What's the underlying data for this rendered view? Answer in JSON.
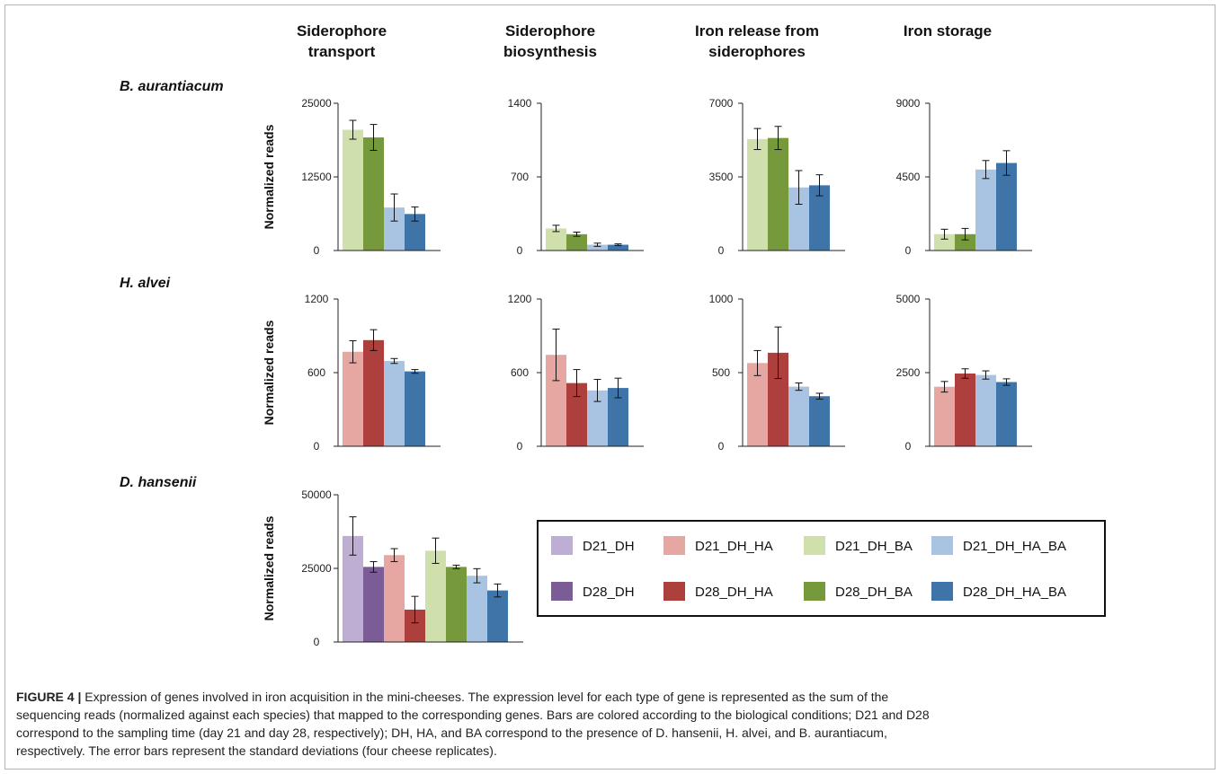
{
  "figure": {
    "column_titles": [
      [
        "Siderophore",
        "transport"
      ],
      [
        "Siderophore",
        "biosynthesis"
      ],
      [
        "Iron release from",
        "siderophores"
      ],
      [
        "Iron storage",
        ""
      ]
    ],
    "row_titles": [
      "B. aurantiacum",
      "H. alvei",
      "D. hansenii"
    ],
    "legend": [
      {
        "label": "D21_DH",
        "color": "#bfaed3"
      },
      {
        "label": "D21_DH_HA",
        "color": "#e6a7a3"
      },
      {
        "label": "D21_DH_BA",
        "color": "#cfe0ad"
      },
      {
        "label": "D21_DH_HA_BA",
        "color": "#a9c4e3"
      },
      {
        "label": "D28_DH",
        "color": "#7b5c96"
      },
      {
        "label": "D28_DH_HA",
        "color": "#ad3f3c"
      },
      {
        "label": "D28_DH_BA",
        "color": "#76993c"
      },
      {
        "label": "D28_DH_HA_BA",
        "color": "#3f74a8"
      }
    ]
  },
  "caption": {
    "label": "FIGURE 4 |",
    "lines": [
      "Expression of genes involved in iron acquisition in the mini-cheeses. The expression level for each type of gene is represented as the sum of the",
      "sequencing reads (normalized against each species) that mapped to the corresponding genes. Bars are colored according to the biological conditions; D21 and D28",
      "correspond to the sampling time (day 21 and day 28, respectively); DH, HA, and BA correspond to the presence of D. hansenii, H. alvei, and B. aurantiacum,",
      "respectively. The error bars represent the standard deviations (four cheese replicates)."
    ]
  },
  "chart_data": [
    {
      "type": "bar",
      "row": 0,
      "col": 0,
      "ylabel": "Normalized reads",
      "ylim": [
        0,
        25000
      ],
      "yticks": [
        "0",
        "12500",
        "25000"
      ],
      "bars": [
        {
          "condition": "D21_DH_BA",
          "value": 20500,
          "error": 1600
        },
        {
          "condition": "D28_DH_BA",
          "value": 19200,
          "error": 2200
        },
        {
          "condition": "D21_DH_HA_BA",
          "value": 7300,
          "error": 2300
        },
        {
          "condition": "D28_DH_HA_BA",
          "value": 6200,
          "error": 1200
        }
      ]
    },
    {
      "type": "bar",
      "row": 0,
      "col": 1,
      "ylabel": "",
      "ylim": [
        0,
        1400
      ],
      "yticks": [
        "0",
        "700",
        "1400"
      ],
      "bars": [
        {
          "condition": "D21_DH_BA",
          "value": 210,
          "error": 30
        },
        {
          "condition": "D28_DH_BA",
          "value": 155,
          "error": 20
        },
        {
          "condition": "D21_DH_HA_BA",
          "value": 55,
          "error": 15
        },
        {
          "condition": "D28_DH_HA_BA",
          "value": 55,
          "error": 8
        }
      ]
    },
    {
      "type": "bar",
      "row": 0,
      "col": 2,
      "ylabel": "",
      "ylim": [
        0,
        7000
      ],
      "yticks": [
        "0",
        "3500",
        "7000"
      ],
      "bars": [
        {
          "condition": "D21_DH_BA",
          "value": 5300,
          "error": 500
        },
        {
          "condition": "D28_DH_BA",
          "value": 5350,
          "error": 550
        },
        {
          "condition": "D21_DH_HA_BA",
          "value": 3000,
          "error": 800
        },
        {
          "condition": "D28_DH_HA_BA",
          "value": 3100,
          "error": 500
        }
      ]
    },
    {
      "type": "bar",
      "row": 0,
      "col": 3,
      "ylabel": "",
      "ylim": [
        0,
        9000
      ],
      "yticks": [
        "0",
        "4500",
        "9000"
      ],
      "bars": [
        {
          "condition": "D21_DH_BA",
          "value": 1000,
          "error": 300
        },
        {
          "condition": "D28_DH_BA",
          "value": 1000,
          "error": 350
        },
        {
          "condition": "D21_DH_HA_BA",
          "value": 4950,
          "error": 550
        },
        {
          "condition": "D28_DH_HA_BA",
          "value": 5350,
          "error": 750
        }
      ]
    },
    {
      "type": "bar",
      "row": 1,
      "col": 0,
      "ylabel": "Normalized reads",
      "ylim": [
        0,
        1200
      ],
      "yticks": [
        "0",
        "600",
        "1200"
      ],
      "bars": [
        {
          "condition": "D21_DH_HA",
          "value": 770,
          "error": 90
        },
        {
          "condition": "D28_DH_HA",
          "value": 865,
          "error": 85
        },
        {
          "condition": "D21_DH_HA_BA",
          "value": 695,
          "error": 20
        },
        {
          "condition": "D28_DH_HA_BA",
          "value": 610,
          "error": 15
        }
      ]
    },
    {
      "type": "bar",
      "row": 1,
      "col": 1,
      "ylabel": "",
      "ylim": [
        0,
        1200
      ],
      "yticks": [
        "0",
        "600",
        "1200"
      ],
      "bars": [
        {
          "condition": "D21_DH_HA",
          "value": 745,
          "error": 210
        },
        {
          "condition": "D28_DH_HA",
          "value": 515,
          "error": 110
        },
        {
          "condition": "D21_DH_HA_BA",
          "value": 455,
          "error": 90
        },
        {
          "condition": "D28_DH_HA_BA",
          "value": 475,
          "error": 80
        }
      ]
    },
    {
      "type": "bar",
      "row": 1,
      "col": 2,
      "ylabel": "",
      "ylim": [
        0,
        1000
      ],
      "yticks": [
        "0",
        "500",
        "1000"
      ],
      "bars": [
        {
          "condition": "D21_DH_HA",
          "value": 565,
          "error": 85
        },
        {
          "condition": "D28_DH_HA",
          "value": 635,
          "error": 175
        },
        {
          "condition": "D21_DH_HA_BA",
          "value": 405,
          "error": 25
        },
        {
          "condition": "D28_DH_HA_BA",
          "value": 340,
          "error": 20
        }
      ]
    },
    {
      "type": "bar",
      "row": 1,
      "col": 3,
      "ylabel": "",
      "ylim": [
        0,
        5000
      ],
      "yticks": [
        "0",
        "2500",
        "5000"
      ],
      "bars": [
        {
          "condition": "D21_DH_HA",
          "value": 2020,
          "error": 180
        },
        {
          "condition": "D28_DH_HA",
          "value": 2470,
          "error": 160
        },
        {
          "condition": "D21_DH_HA_BA",
          "value": 2420,
          "error": 140
        },
        {
          "condition": "D28_DH_HA_BA",
          "value": 2180,
          "error": 110
        }
      ]
    },
    {
      "type": "bar",
      "row": 2,
      "col": 0,
      "ylabel": "Normalized reads",
      "ylim": [
        0,
        50000
      ],
      "yticks": [
        "0",
        "25000",
        "50000"
      ],
      "bars": [
        {
          "condition": "D21_DH",
          "value": 36000,
          "error": 6500
        },
        {
          "condition": "D28_DH",
          "value": 25500,
          "error": 1800
        },
        {
          "condition": "D21_DH_HA",
          "value": 29500,
          "error": 2200
        },
        {
          "condition": "D28_DH_HA",
          "value": 11000,
          "error": 4500
        },
        {
          "condition": "D21_DH_BA",
          "value": 31000,
          "error": 4300
        },
        {
          "condition": "D28_DH_BA",
          "value": 25500,
          "error": 600
        },
        {
          "condition": "D21_DH_HA_BA",
          "value": 22500,
          "error": 2400
        },
        {
          "condition": "D28_DH_HA_BA",
          "value": 17500,
          "error": 2200
        }
      ]
    }
  ]
}
